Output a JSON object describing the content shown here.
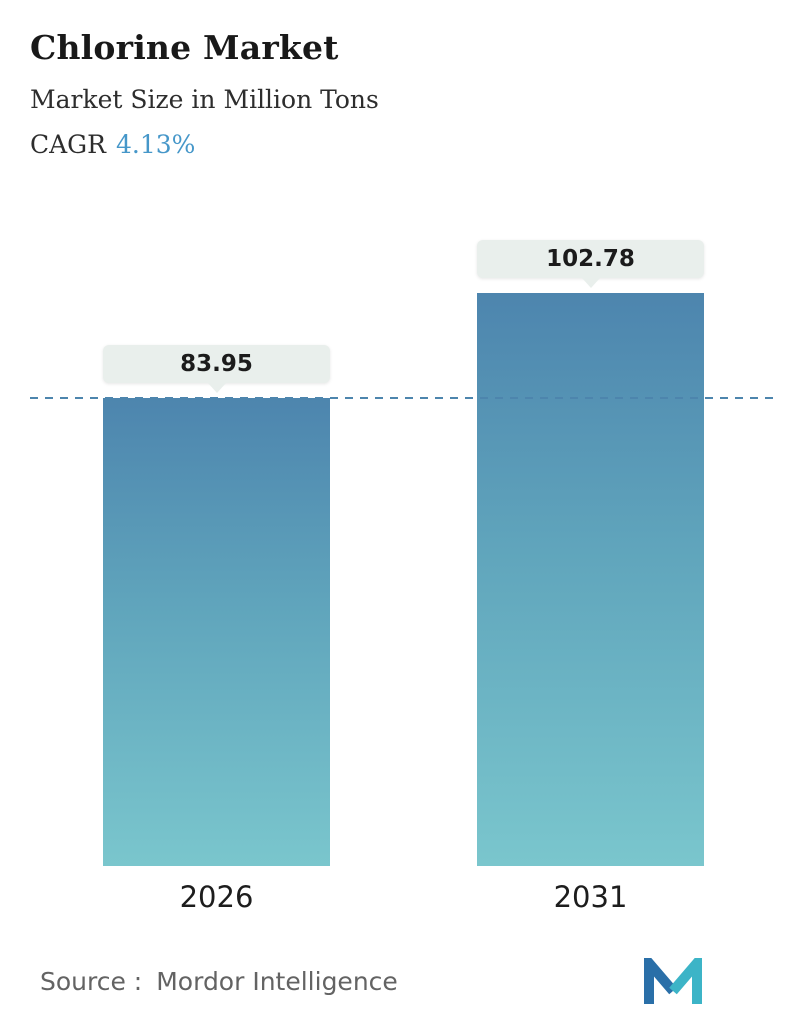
{
  "header": {
    "title": "Chlorine Market",
    "subtitle": "Market Size in Million Tons",
    "cagr_label": "CAGR",
    "cagr_value": "4.13%"
  },
  "chart_data": {
    "type": "bar",
    "title": "Chlorine Market",
    "ylabel": "Market Size in Million Tons",
    "unit": "Million Tons",
    "categories": [
      "2026",
      "2031"
    ],
    "values": [
      83.95,
      102.78
    ],
    "cagr_percent": 4.13,
    "reference_line": 83.95,
    "grid": false,
    "legend": false,
    "bar_gradient_top": "#4d85ae",
    "bar_gradient_bottom": "#7ac6cd",
    "reference_line_color": "#4d85ad",
    "callout_bg": "#e9efec"
  },
  "footer": {
    "source_label": "Source :",
    "source_value": "Mordor Intelligence"
  },
  "colors": {
    "cagr_accent": "#4697c9",
    "title_text": "#191919",
    "source_text": "#636363",
    "logo_dark_blue": "#2a6fa8",
    "logo_teal": "#3cb4c7"
  }
}
